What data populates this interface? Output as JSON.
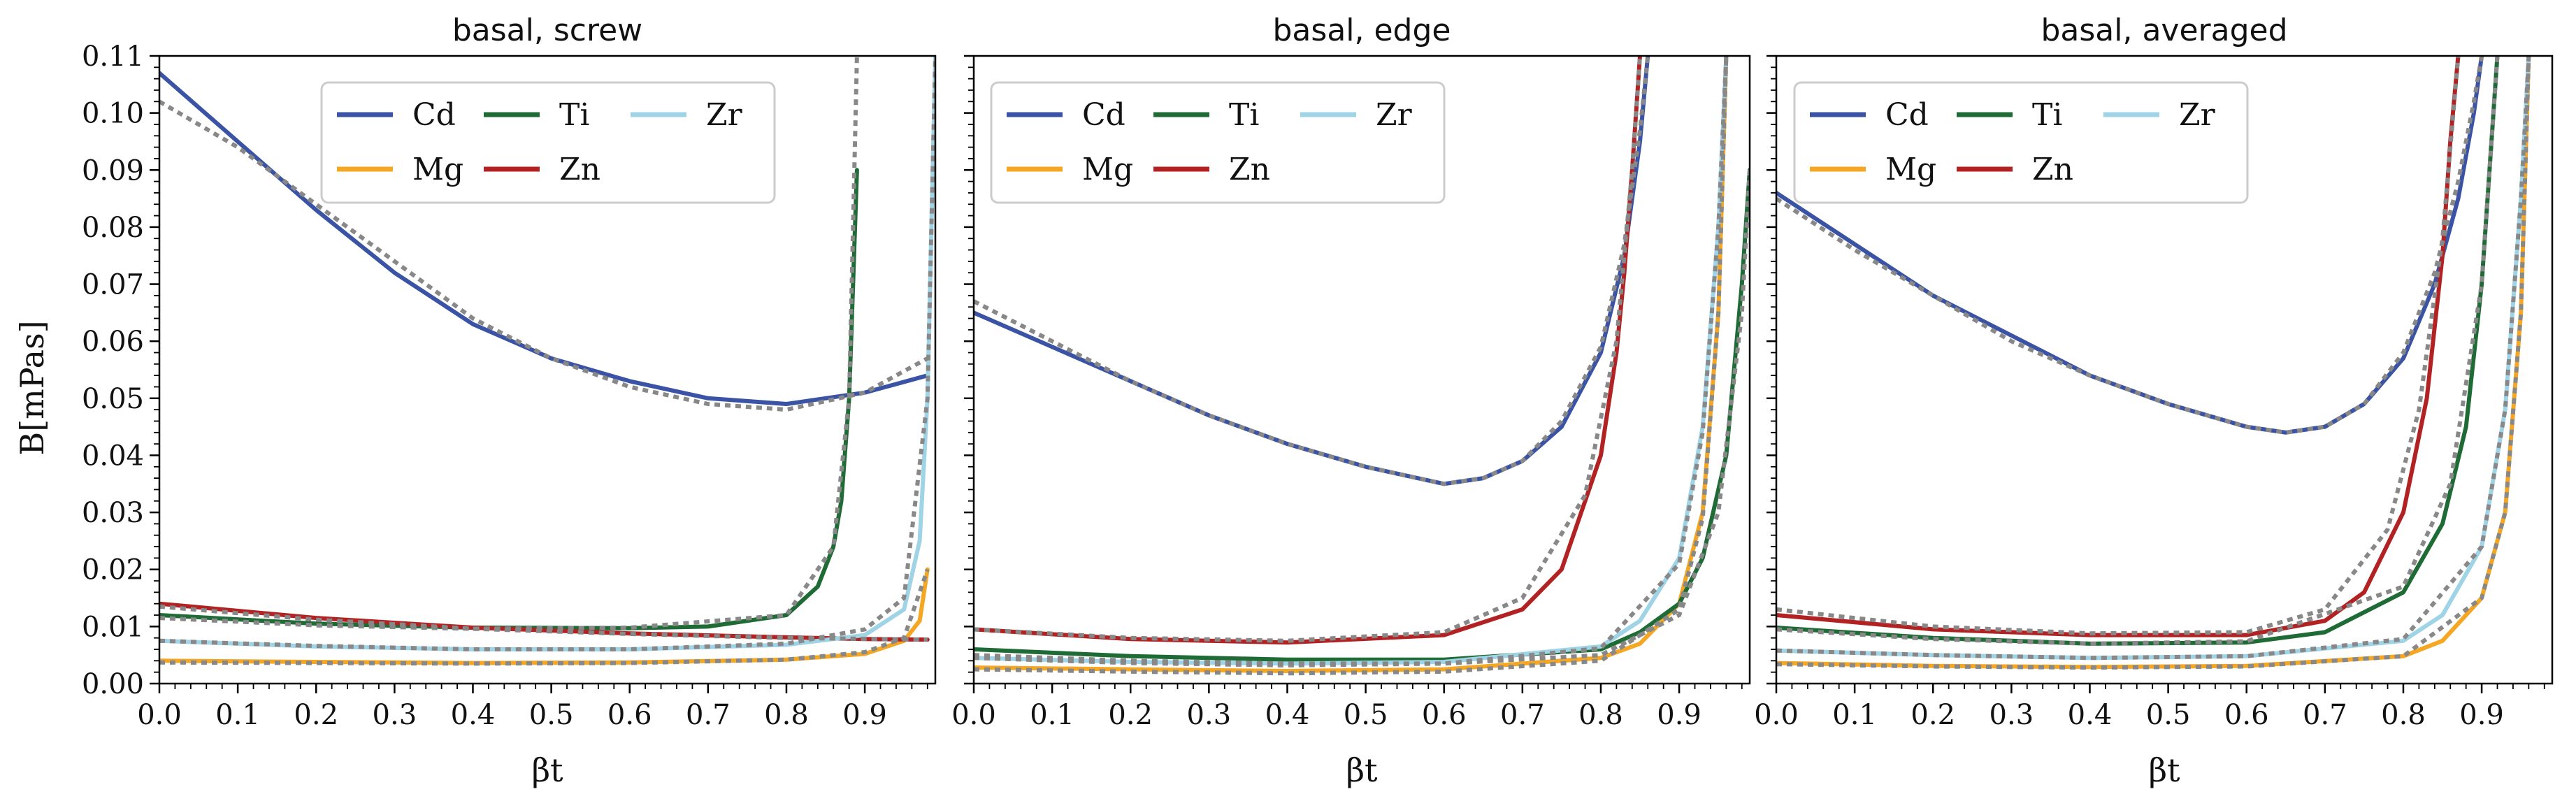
{
  "figure": {
    "ylabel": "B[mPas]",
    "xlabel": "βt"
  },
  "chart_data": [
    {
      "type": "line",
      "title": "basal, screw",
      "xlabel": "βt",
      "ylabel": "B[mPas]",
      "xlim": [
        0.0,
        0.99
      ],
      "ylim": [
        0.0,
        0.11
      ],
      "xticks": [
        "0.0",
        "0.1",
        "0.2",
        "0.3",
        "0.4",
        "0.5",
        "0.6",
        "0.7",
        "0.8",
        "0.9"
      ],
      "yticks": [
        "0.00",
        "0.01",
        "0.02",
        "0.03",
        "0.04",
        "0.05",
        "0.06",
        "0.07",
        "0.08",
        "0.09",
        "0.10",
        "0.11"
      ],
      "legend": {
        "position": "top-center",
        "entries": [
          "Cd",
          "Mg",
          "Ti",
          "Zn",
          "Zr"
        ]
      },
      "series": [
        {
          "name": "Cd",
          "color": "#3a53a4",
          "x": [
            0.0,
            0.1,
            0.2,
            0.3,
            0.4,
            0.5,
            0.6,
            0.7,
            0.8,
            0.9,
            0.98
          ],
          "values": [
            0.107,
            0.095,
            0.083,
            0.072,
            0.063,
            0.057,
            0.053,
            0.05,
            0.049,
            0.051,
            0.054
          ]
        },
        {
          "name": "Mg",
          "color": "#f5a623",
          "x": [
            0.0,
            0.2,
            0.4,
            0.6,
            0.8,
            0.9,
            0.95,
            0.97,
            0.98
          ],
          "values": [
            0.004,
            0.0038,
            0.0036,
            0.0037,
            0.0042,
            0.0052,
            0.0075,
            0.011,
            0.02
          ]
        },
        {
          "name": "Ti",
          "color": "#1f6b35",
          "x": [
            0.0,
            0.2,
            0.4,
            0.6,
            0.7,
            0.8,
            0.84,
            0.86,
            0.87,
            0.88,
            0.89
          ],
          "values": [
            0.012,
            0.0105,
            0.0098,
            0.0097,
            0.01,
            0.012,
            0.017,
            0.024,
            0.032,
            0.05,
            0.09
          ]
        },
        {
          "name": "Zn",
          "color": "#b22222",
          "x": [
            0.0,
            0.2,
            0.4,
            0.6,
            0.8,
            0.9,
            0.98
          ],
          "values": [
            0.014,
            0.0115,
            0.0098,
            0.0088,
            0.0081,
            0.0078,
            0.0077
          ]
        },
        {
          "name": "Zr",
          "color": "#9fd3e6",
          "x": [
            0.0,
            0.2,
            0.4,
            0.6,
            0.8,
            0.9,
            0.95,
            0.97,
            0.98,
            0.99
          ],
          "values": [
            0.0075,
            0.0065,
            0.006,
            0.006,
            0.0068,
            0.0085,
            0.013,
            0.025,
            0.05,
            0.11
          ]
        }
      ],
      "fits": [
        {
          "name": "Cd",
          "x": [
            0.0,
            0.1,
            0.2,
            0.3,
            0.4,
            0.5,
            0.6,
            0.7,
            0.8,
            0.9,
            0.98
          ],
          "values": [
            0.102,
            0.094,
            0.084,
            0.074,
            0.064,
            0.057,
            0.052,
            0.049,
            0.048,
            0.051,
            0.057
          ]
        },
        {
          "name": "Ti",
          "x": [
            0.0,
            0.2,
            0.4,
            0.6,
            0.8,
            0.86,
            0.88,
            0.885,
            0.89
          ],
          "values": [
            0.0115,
            0.0102,
            0.0096,
            0.0098,
            0.012,
            0.024,
            0.05,
            0.08,
            0.11
          ]
        },
        {
          "name": "Zn",
          "x": [
            0.0,
            0.2,
            0.4,
            0.6,
            0.8,
            0.98
          ],
          "values": [
            0.0135,
            0.0112,
            0.0096,
            0.0087,
            0.008,
            0.0077
          ]
        },
        {
          "name": "Zr",
          "x": [
            0.0,
            0.2,
            0.4,
            0.6,
            0.8,
            0.9,
            0.95,
            0.98,
            0.99
          ],
          "values": [
            0.0075,
            0.0066,
            0.006,
            0.006,
            0.007,
            0.0095,
            0.015,
            0.05,
            0.11
          ]
        },
        {
          "name": "Mg",
          "x": [
            0.0,
            0.2,
            0.4,
            0.6,
            0.8,
            0.9,
            0.95,
            0.98
          ],
          "values": [
            0.0037,
            0.0036,
            0.0035,
            0.0036,
            0.0042,
            0.0055,
            0.008,
            0.02
          ]
        }
      ]
    },
    {
      "type": "line",
      "title": "basal, edge",
      "xlabel": "βt",
      "ylabel": "",
      "xlim": [
        0.0,
        0.99
      ],
      "ylim": [
        0.0,
        0.11
      ],
      "xticks": [
        "0.0",
        "0.1",
        "0.2",
        "0.3",
        "0.4",
        "0.5",
        "0.6",
        "0.7",
        "0.8",
        "0.9"
      ],
      "yticks": [],
      "legend": {
        "position": "top-left",
        "entries": [
          "Cd",
          "Mg",
          "Ti",
          "Zn",
          "Zr"
        ]
      },
      "series": [
        {
          "name": "Cd",
          "color": "#3a53a4",
          "x": [
            0.0,
            0.1,
            0.2,
            0.3,
            0.4,
            0.5,
            0.6,
            0.65,
            0.7,
            0.75,
            0.8,
            0.83,
            0.85,
            0.86
          ],
          "values": [
            0.065,
            0.059,
            0.053,
            0.047,
            0.042,
            0.038,
            0.035,
            0.036,
            0.039,
            0.045,
            0.058,
            0.075,
            0.095,
            0.11
          ]
        },
        {
          "name": "Mg",
          "color": "#f5a623",
          "x": [
            0.0,
            0.2,
            0.4,
            0.6,
            0.8,
            0.85,
            0.9,
            0.93,
            0.95,
            0.96
          ],
          "values": [
            0.0028,
            0.0025,
            0.0022,
            0.0025,
            0.0045,
            0.007,
            0.014,
            0.03,
            0.065,
            0.11
          ]
        },
        {
          "name": "Ti",
          "color": "#1f6b35",
          "x": [
            0.0,
            0.2,
            0.4,
            0.6,
            0.8,
            0.85,
            0.9,
            0.93,
            0.96,
            0.98,
            0.99
          ],
          "values": [
            0.006,
            0.0048,
            0.0042,
            0.0042,
            0.006,
            0.009,
            0.014,
            0.022,
            0.04,
            0.07,
            0.09
          ]
        },
        {
          "name": "Zn",
          "color": "#b22222",
          "x": [
            0.0,
            0.2,
            0.4,
            0.6,
            0.7,
            0.75,
            0.8,
            0.82,
            0.83,
            0.84,
            0.85
          ],
          "values": [
            0.0095,
            0.0078,
            0.0072,
            0.0085,
            0.013,
            0.02,
            0.04,
            0.058,
            0.072,
            0.09,
            0.11
          ]
        },
        {
          "name": "Zr",
          "color": "#9fd3e6",
          "x": [
            0.0,
            0.2,
            0.4,
            0.6,
            0.8,
            0.85,
            0.9,
            0.93,
            0.95,
            0.96
          ],
          "values": [
            0.0045,
            0.0038,
            0.0035,
            0.0038,
            0.0065,
            0.011,
            0.022,
            0.045,
            0.08,
            0.11
          ]
        }
      ],
      "fits": [
        {
          "name": "Cd",
          "x": [
            0.0,
            0.1,
            0.2,
            0.3,
            0.4,
            0.5,
            0.6,
            0.65,
            0.7,
            0.75,
            0.8,
            0.83,
            0.85,
            0.86
          ],
          "values": [
            0.067,
            0.06,
            0.053,
            0.047,
            0.042,
            0.038,
            0.035,
            0.036,
            0.039,
            0.046,
            0.059,
            0.077,
            0.097,
            0.11
          ]
        },
        {
          "name": "Zn",
          "x": [
            0.0,
            0.2,
            0.4,
            0.6,
            0.7,
            0.78,
            0.82,
            0.84,
            0.85
          ],
          "values": [
            0.0095,
            0.008,
            0.0075,
            0.009,
            0.015,
            0.033,
            0.06,
            0.09,
            0.11
          ]
        },
        {
          "name": "Ti",
          "x": [
            0.0,
            0.2,
            0.4,
            0.6,
            0.8,
            0.9,
            0.95,
            0.98,
            0.99
          ],
          "values": [
            0.005,
            0.004,
            0.0035,
            0.0035,
            0.005,
            0.012,
            0.03,
            0.065,
            0.09
          ]
        },
        {
          "name": "Zr",
          "x": [
            0.0,
            0.2,
            0.4,
            0.6,
            0.8,
            0.9,
            0.93,
            0.95,
            0.96
          ],
          "values": [
            0.0045,
            0.0036,
            0.0032,
            0.0035,
            0.0062,
            0.021,
            0.044,
            0.08,
            0.11
          ]
        },
        {
          "name": "Mg",
          "x": [
            0.0,
            0.2,
            0.4,
            0.6,
            0.8,
            0.9,
            0.93,
            0.95,
            0.96
          ],
          "values": [
            0.0025,
            0.0021,
            0.0018,
            0.0021,
            0.004,
            0.013,
            0.029,
            0.065,
            0.11
          ]
        }
      ]
    },
    {
      "type": "line",
      "title": "basal, averaged",
      "xlabel": "βt",
      "ylabel": "",
      "xlim": [
        0.0,
        0.99
      ],
      "ylim": [
        0.0,
        0.11
      ],
      "xticks": [
        "0.0",
        "0.1",
        "0.2",
        "0.3",
        "0.4",
        "0.5",
        "0.6",
        "0.7",
        "0.8",
        "0.9"
      ],
      "yticks": [],
      "legend": {
        "position": "top-left",
        "entries": [
          "Cd",
          "Mg",
          "Ti",
          "Zn",
          "Zr"
        ]
      },
      "series": [
        {
          "name": "Cd",
          "color": "#3a53a4",
          "x": [
            0.0,
            0.1,
            0.2,
            0.3,
            0.4,
            0.5,
            0.6,
            0.65,
            0.7,
            0.75,
            0.8,
            0.84,
            0.87,
            0.89,
            0.9
          ],
          "values": [
            0.086,
            0.077,
            0.068,
            0.061,
            0.054,
            0.049,
            0.045,
            0.044,
            0.045,
            0.049,
            0.057,
            0.07,
            0.085,
            0.1,
            0.11
          ]
        },
        {
          "name": "Mg",
          "color": "#f5a623",
          "x": [
            0.0,
            0.2,
            0.4,
            0.6,
            0.8,
            0.85,
            0.9,
            0.93,
            0.95,
            0.96
          ],
          "values": [
            0.0036,
            0.0031,
            0.0029,
            0.0031,
            0.0048,
            0.0075,
            0.015,
            0.03,
            0.065,
            0.11
          ]
        },
        {
          "name": "Ti",
          "color": "#1f6b35",
          "x": [
            0.0,
            0.2,
            0.4,
            0.6,
            0.7,
            0.8,
            0.85,
            0.88,
            0.9,
            0.91,
            0.92
          ],
          "values": [
            0.0098,
            0.008,
            0.007,
            0.0072,
            0.009,
            0.016,
            0.028,
            0.045,
            0.07,
            0.09,
            0.11
          ]
        },
        {
          "name": "Zn",
          "color": "#b22222",
          "x": [
            0.0,
            0.2,
            0.4,
            0.6,
            0.7,
            0.75,
            0.8,
            0.83,
            0.85,
            0.86,
            0.87
          ],
          "values": [
            0.012,
            0.0095,
            0.0085,
            0.0085,
            0.011,
            0.016,
            0.03,
            0.05,
            0.075,
            0.095,
            0.11
          ]
        },
        {
          "name": "Zr",
          "color": "#9fd3e6",
          "x": [
            0.0,
            0.2,
            0.4,
            0.6,
            0.8,
            0.85,
            0.9,
            0.93,
            0.95,
            0.96
          ],
          "values": [
            0.0058,
            0.005,
            0.0045,
            0.0048,
            0.0075,
            0.012,
            0.024,
            0.048,
            0.085,
            0.11
          ]
        }
      ],
      "fits": [
        {
          "name": "Cd",
          "x": [
            0.0,
            0.1,
            0.2,
            0.3,
            0.4,
            0.5,
            0.6,
            0.65,
            0.7,
            0.75,
            0.8,
            0.84,
            0.87,
            0.89,
            0.9
          ],
          "values": [
            0.085,
            0.076,
            0.068,
            0.06,
            0.054,
            0.049,
            0.045,
            0.044,
            0.045,
            0.049,
            0.058,
            0.072,
            0.088,
            0.102,
            0.11
          ]
        },
        {
          "name": "Zn",
          "x": [
            0.0,
            0.2,
            0.4,
            0.6,
            0.7,
            0.78,
            0.82,
            0.85,
            0.87
          ],
          "values": [
            0.013,
            0.01,
            0.0088,
            0.009,
            0.013,
            0.027,
            0.048,
            0.078,
            0.11
          ]
        },
        {
          "name": "Ti",
          "x": [
            0.0,
            0.2,
            0.4,
            0.6,
            0.8,
            0.86,
            0.9,
            0.92
          ],
          "values": [
            0.0095,
            0.0078,
            0.007,
            0.0074,
            0.017,
            0.035,
            0.07,
            0.11
          ]
        },
        {
          "name": "Zr",
          "x": [
            0.0,
            0.2,
            0.4,
            0.6,
            0.8,
            0.9,
            0.93,
            0.95,
            0.96
          ],
          "values": [
            0.0058,
            0.005,
            0.0045,
            0.0048,
            0.0078,
            0.024,
            0.048,
            0.085,
            0.11
          ]
        },
        {
          "name": "Mg",
          "x": [
            0.0,
            0.2,
            0.4,
            0.6,
            0.8,
            0.9,
            0.93,
            0.95,
            0.96
          ],
          "values": [
            0.0034,
            0.003,
            0.0028,
            0.003,
            0.0048,
            0.015,
            0.03,
            0.065,
            0.11
          ]
        }
      ]
    }
  ]
}
